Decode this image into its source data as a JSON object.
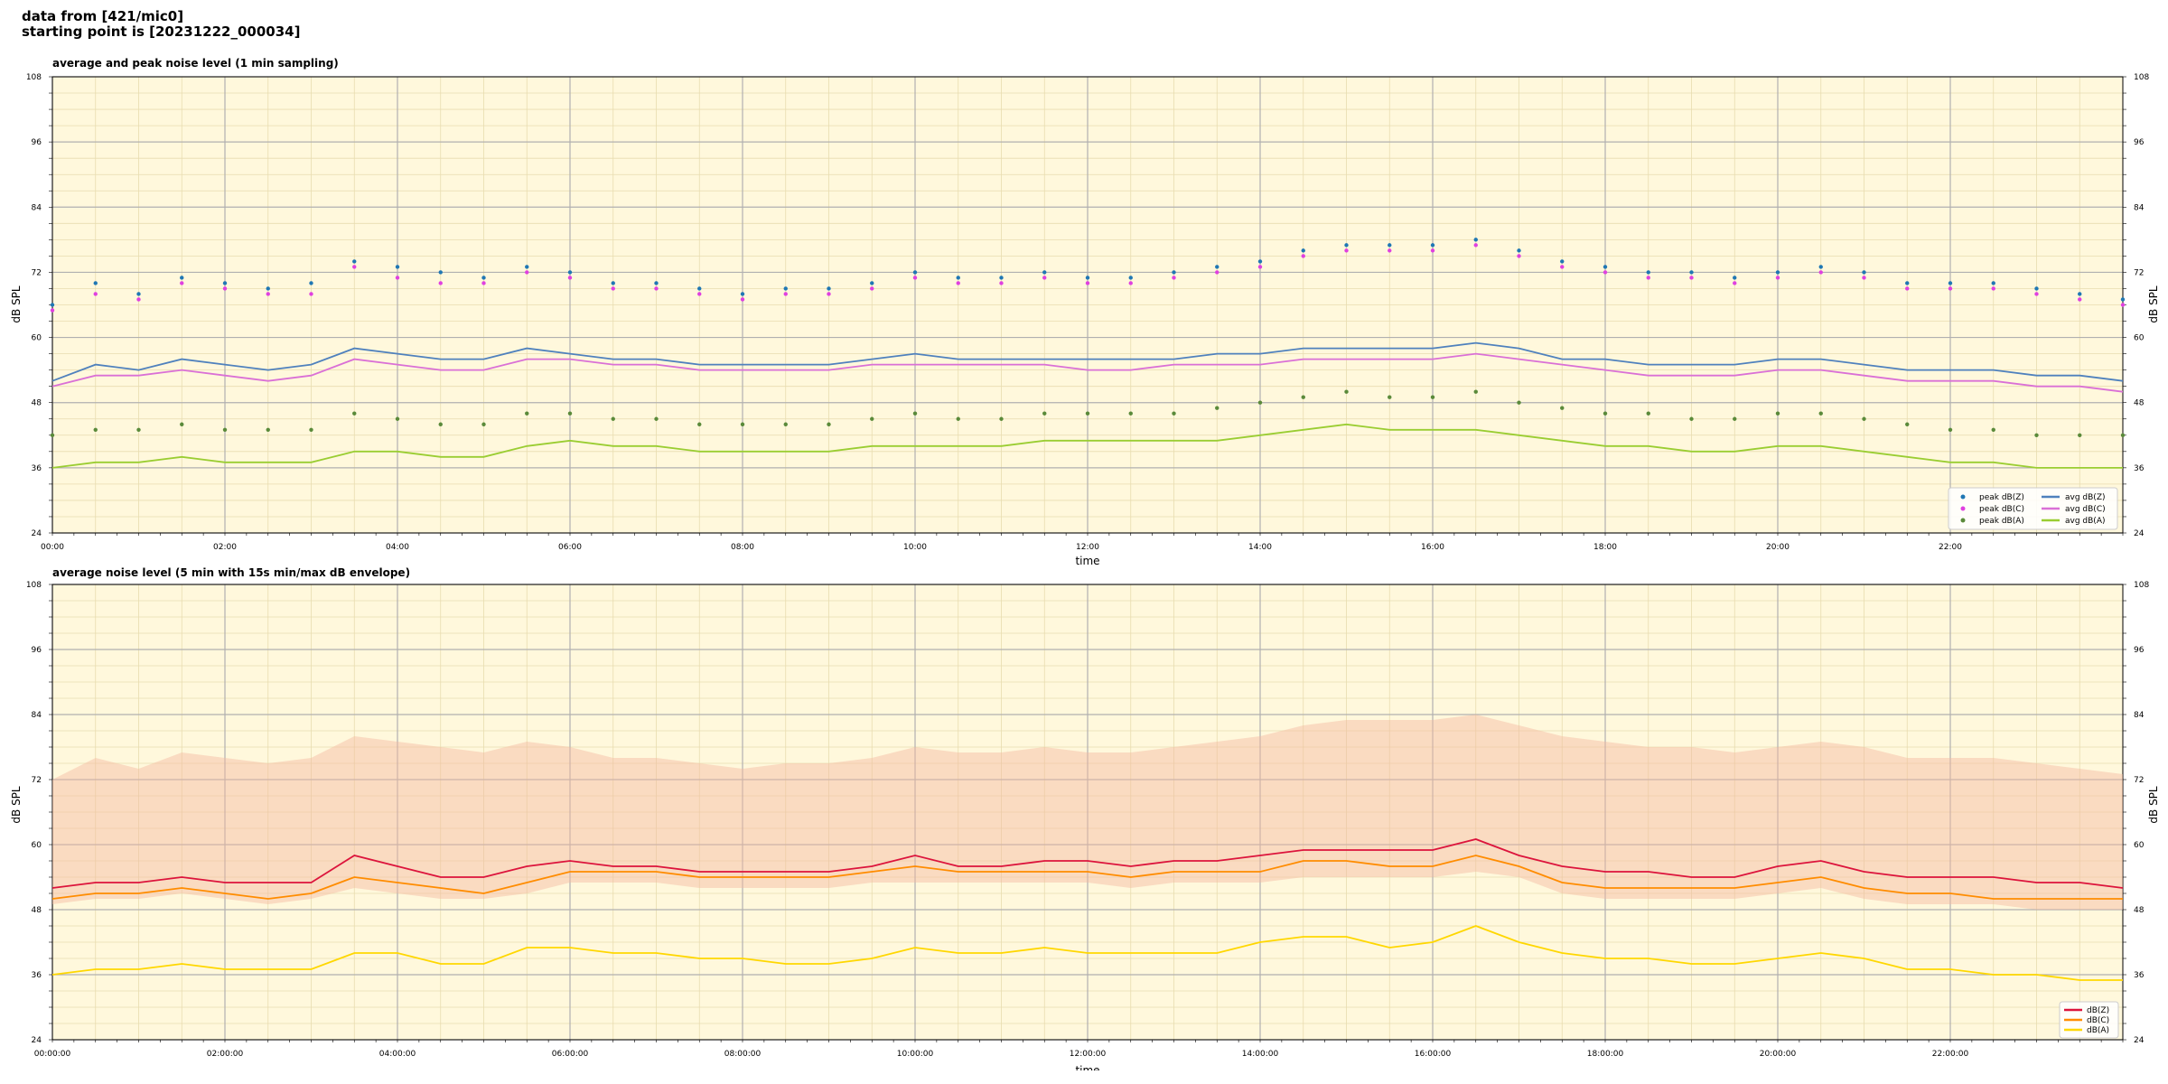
{
  "header": {
    "line1": "data from [421/mic0]",
    "line2": "starting point is [20231222_000034]"
  },
  "chart_data": [
    {
      "type": "line",
      "title": "average and peak noise level (1 min sampling)",
      "xlabel": "time",
      "ylabel": "dB SPL",
      "x_unit": "hours",
      "xlim": [
        0,
        24
      ],
      "ylim": [
        24,
        108
      ],
      "y_ticks": [
        24,
        36,
        48,
        60,
        72,
        84,
        96,
        108
      ],
      "x_tick_labels": [
        "00:00",
        "02:00",
        "04:00",
        "06:00",
        "08:00",
        "10:00",
        "12:00",
        "14:00",
        "16:00",
        "18:00",
        "20:00",
        "22:00"
      ],
      "grid": true,
      "legend_position": "lower right",
      "colors": {
        "background": "#fff8dc",
        "peak_z": "#1f77b4",
        "peak_c": "#e040e0",
        "peak_a": "#5a8a3a",
        "avg_z": "#4f81bd",
        "avg_c": "#da70d6",
        "avg_a": "#9acd32"
      },
      "legend": [
        {
          "label": "peak dB(Z)",
          "kind": "dot",
          "color": "#1f77b4"
        },
        {
          "label": "peak dB(C)",
          "kind": "dot",
          "color": "#e040e0"
        },
        {
          "label": "peak dB(A)",
          "kind": "dot",
          "color": "#5a8a3a"
        },
        {
          "label": "avg dB(Z)",
          "kind": "line",
          "color": "#4f81bd"
        },
        {
          "label": "avg dB(C)",
          "kind": "line",
          "color": "#da70d6"
        },
        {
          "label": "avg dB(A)",
          "kind": "line",
          "color": "#9acd32"
        }
      ],
      "x": [
        0,
        0.5,
        1,
        1.5,
        2,
        2.5,
        3,
        3.5,
        4,
        4.5,
        5,
        5.5,
        6,
        6.5,
        7,
        7.5,
        8,
        8.5,
        9,
        9.5,
        10,
        10.5,
        11,
        11.5,
        12,
        12.5,
        13,
        13.5,
        14,
        14.5,
        15,
        15.5,
        16,
        16.5,
        17,
        17.5,
        18,
        18.5,
        19,
        19.5,
        20,
        20.5,
        21,
        21.5,
        22,
        22.5,
        23,
        23.5,
        24
      ],
      "series": [
        {
          "name": "avg dB(Z)",
          "values": [
            52,
            55,
            54,
            56,
            55,
            54,
            55,
            58,
            57,
            56,
            56,
            58,
            57,
            56,
            56,
            55,
            55,
            55,
            55,
            56,
            57,
            56,
            56,
            56,
            56,
            56,
            56,
            57,
            57,
            58,
            58,
            58,
            58,
            59,
            58,
            56,
            56,
            55,
            55,
            55,
            56,
            56,
            55,
            54,
            54,
            54,
            53,
            53,
            52
          ]
        },
        {
          "name": "avg dB(C)",
          "values": [
            51,
            53,
            53,
            54,
            53,
            52,
            53,
            56,
            55,
            54,
            54,
            56,
            56,
            55,
            55,
            54,
            54,
            54,
            54,
            55,
            55,
            55,
            55,
            55,
            54,
            54,
            55,
            55,
            55,
            56,
            56,
            56,
            56,
            57,
            56,
            55,
            54,
            53,
            53,
            53,
            54,
            54,
            53,
            52,
            52,
            52,
            51,
            51,
            50
          ]
        },
        {
          "name": "avg dB(A)",
          "values": [
            36,
            37,
            37,
            38,
            37,
            37,
            37,
            39,
            39,
            38,
            38,
            40,
            41,
            40,
            40,
            39,
            39,
            39,
            39,
            40,
            40,
            40,
            40,
            41,
            41,
            41,
            41,
            41,
            42,
            43,
            44,
            43,
            43,
            43,
            42,
            41,
            40,
            40,
            39,
            39,
            40,
            40,
            39,
            38,
            37,
            37,
            36,
            36,
            36
          ]
        },
        {
          "name": "peak dB(Z)",
          "values": [
            66,
            70,
            68,
            71,
            70,
            69,
            70,
            74,
            73,
            72,
            71,
            73,
            72,
            70,
            70,
            69,
            68,
            69,
            69,
            70,
            72,
            71,
            71,
            72,
            71,
            71,
            72,
            73,
            74,
            76,
            77,
            77,
            77,
            78,
            76,
            74,
            73,
            72,
            72,
            71,
            72,
            73,
            72,
            70,
            70,
            70,
            69,
            68,
            67
          ]
        },
        {
          "name": "peak dB(C)",
          "values": [
            65,
            68,
            67,
            70,
            69,
            68,
            68,
            73,
            71,
            70,
            70,
            72,
            71,
            69,
            69,
            68,
            67,
            68,
            68,
            69,
            71,
            70,
            70,
            71,
            70,
            70,
            71,
            72,
            73,
            75,
            76,
            76,
            76,
            77,
            75,
            73,
            72,
            71,
            71,
            70,
            71,
            72,
            71,
            69,
            69,
            69,
            68,
            67,
            66
          ]
        },
        {
          "name": "peak dB(A)",
          "values": [
            42,
            43,
            43,
            44,
            43,
            43,
            43,
            46,
            45,
            44,
            44,
            46,
            46,
            45,
            45,
            44,
            44,
            44,
            44,
            45,
            46,
            45,
            45,
            46,
            46,
            46,
            46,
            47,
            48,
            49,
            50,
            49,
            49,
            50,
            48,
            47,
            46,
            46,
            45,
            45,
            46,
            46,
            45,
            44,
            43,
            43,
            42,
            42,
            42
          ]
        }
      ]
    },
    {
      "type": "line",
      "title": "average noise level (5 min with 15s min/max dB envelope)",
      "xlabel": "time",
      "ylabel": "dB SPL",
      "x_unit": "hours",
      "xlim": [
        0,
        24
      ],
      "ylim": [
        24,
        108
      ],
      "y_ticks": [
        24,
        36,
        48,
        60,
        72,
        84,
        96,
        108
      ],
      "x_tick_labels": [
        "00:00:00",
        "02:00:00",
        "04:00:00",
        "06:00:00",
        "08:00:00",
        "10:00:00",
        "12:00:00",
        "14:00:00",
        "16:00:00",
        "18:00:00",
        "20:00:00",
        "22:00:00"
      ],
      "grid": true,
      "legend_position": "lower right",
      "colors": {
        "background": "#fff8dc",
        "z": "#dc143c",
        "c": "#ff8c00",
        "a": "#ffd700",
        "envelope": "#f4b8a0"
      },
      "legend": [
        {
          "label": "dB(Z)",
          "color": "#dc143c"
        },
        {
          "label": "dB(C)",
          "color": "#ff8c00"
        },
        {
          "label": "dB(A)",
          "color": "#ffd700"
        }
      ],
      "x": [
        0,
        0.5,
        1,
        1.5,
        2,
        2.5,
        3,
        3.5,
        4,
        4.5,
        5,
        5.5,
        6,
        6.5,
        7,
        7.5,
        8,
        8.5,
        9,
        9.5,
        10,
        10.5,
        11,
        11.5,
        12,
        12.5,
        13,
        13.5,
        14,
        14.5,
        15,
        15.5,
        16,
        16.5,
        17,
        17.5,
        18,
        18.5,
        19,
        19.5,
        20,
        20.5,
        21,
        21.5,
        22,
        22.5,
        23,
        23.5,
        24
      ],
      "series": [
        {
          "name": "dB(Z)",
          "values": [
            52,
            53,
            53,
            54,
            53,
            53,
            53,
            58,
            56,
            54,
            54,
            56,
            57,
            56,
            56,
            55,
            55,
            55,
            55,
            56,
            58,
            56,
            56,
            57,
            57,
            56,
            57,
            57,
            58,
            59,
            59,
            59,
            59,
            61,
            58,
            56,
            55,
            55,
            54,
            54,
            56,
            57,
            55,
            54,
            54,
            54,
            53,
            53,
            52
          ]
        },
        {
          "name": "dB(C)",
          "values": [
            50,
            51,
            51,
            52,
            51,
            50,
            51,
            54,
            53,
            52,
            51,
            53,
            55,
            55,
            55,
            54,
            54,
            54,
            54,
            55,
            56,
            55,
            55,
            55,
            55,
            54,
            55,
            55,
            55,
            57,
            57,
            56,
            56,
            58,
            56,
            53,
            52,
            52,
            52,
            52,
            53,
            54,
            52,
            51,
            51,
            50,
            50,
            50,
            50
          ]
        },
        {
          "name": "dB(A)",
          "values": [
            36,
            37,
            37,
            38,
            37,
            37,
            37,
            40,
            40,
            38,
            38,
            41,
            41,
            40,
            40,
            39,
            39,
            38,
            38,
            39,
            41,
            40,
            40,
            41,
            40,
            40,
            40,
            40,
            42,
            43,
            43,
            41,
            42,
            45,
            42,
            40,
            39,
            39,
            38,
            38,
            39,
            40,
            39,
            37,
            37,
            36,
            36,
            35,
            35
          ]
        },
        {
          "name": "max envelope",
          "values": [
            72,
            76,
            74,
            77,
            76,
            75,
            76,
            80,
            79,
            78,
            77,
            79,
            78,
            76,
            76,
            75,
            74,
            75,
            75,
            76,
            78,
            77,
            77,
            78,
            77,
            77,
            78,
            79,
            80,
            82,
            83,
            83,
            83,
            84,
            82,
            80,
            79,
            78,
            78,
            77,
            78,
            79,
            78,
            76,
            76,
            76,
            75,
            74,
            73
          ]
        },
        {
          "name": "min envelope",
          "values": [
            49,
            50,
            50,
            51,
            50,
            49,
            50,
            52,
            51,
            50,
            50,
            51,
            53,
            53,
            53,
            52,
            52,
            52,
            52,
            53,
            53,
            53,
            53,
            53,
            53,
            52,
            53,
            53,
            53,
            54,
            54,
            54,
            54,
            55,
            54,
            51,
            50,
            50,
            50,
            50,
            51,
            52,
            50,
            49,
            49,
            49,
            48,
            48,
            48
          ]
        }
      ]
    }
  ]
}
